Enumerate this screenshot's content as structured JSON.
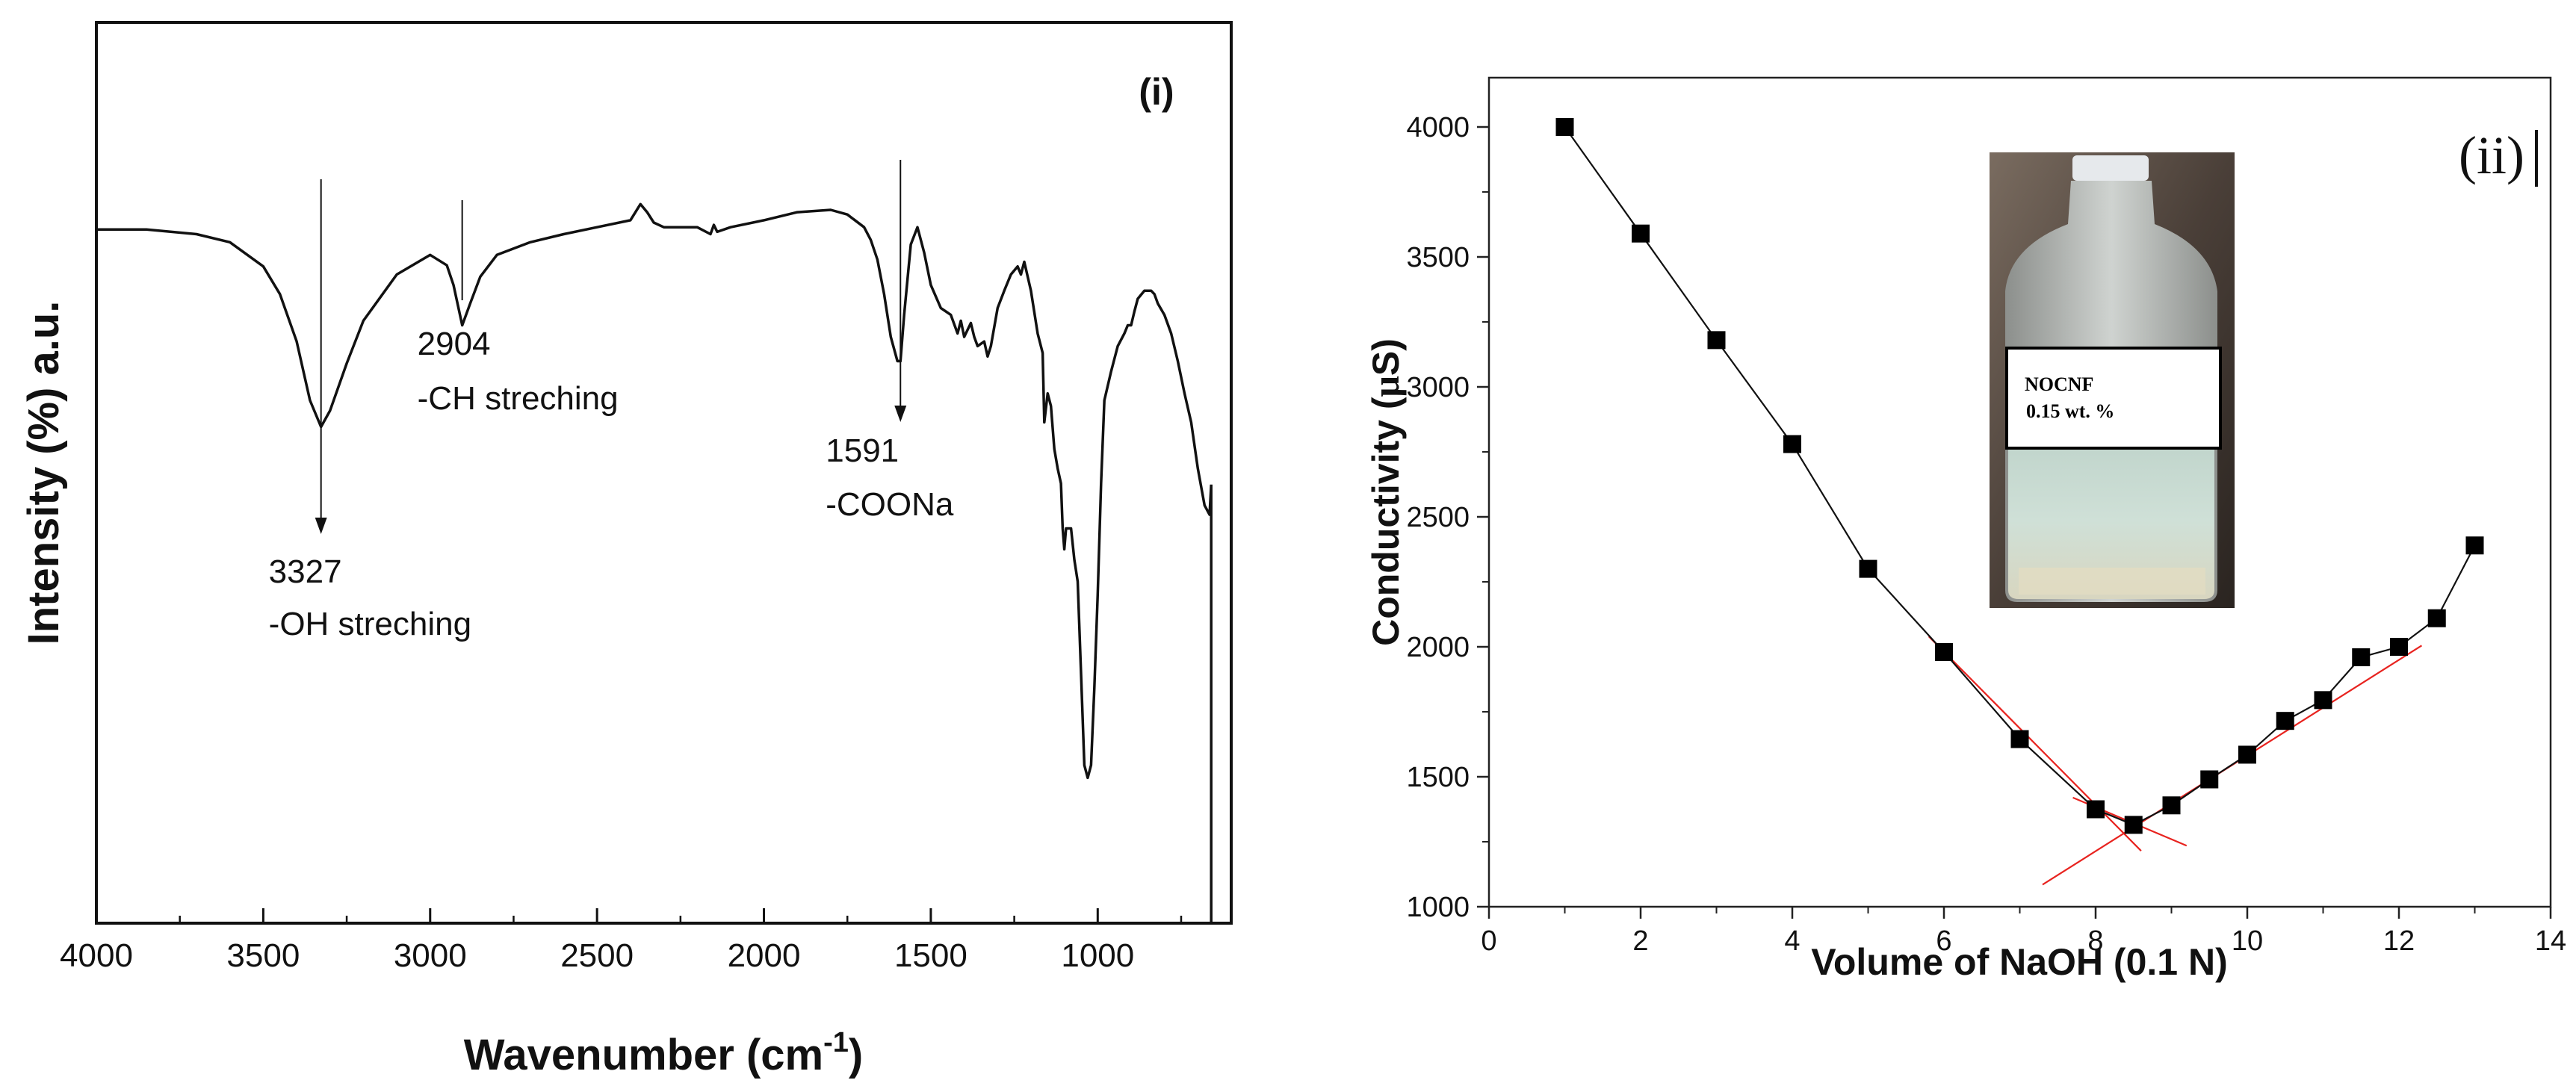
{
  "chart_data": [
    {
      "type": "line",
      "panel_label": "(i)",
      "title": "",
      "xlabel_main": "Wavenumber (cm",
      "xlabel_sup": "-1",
      "xlabel_close": ")",
      "ylabel": "Intensity (%) a.u.",
      "xlim": [
        4000,
        600
      ],
      "xticks": [
        4000,
        3500,
        3000,
        2500,
        2000,
        1500,
        1000
      ],
      "xtick_labels": [
        "4000",
        "3500",
        "3000",
        "2500",
        "2000",
        "1500",
        "1000"
      ],
      "grid": false,
      "series": [
        {
          "name": "FTIR spectrum",
          "x": [
            4000,
            3850,
            3700,
            3600,
            3500,
            3450,
            3400,
            3360,
            3327,
            3300,
            3250,
            3200,
            3100,
            3000,
            2950,
            2930,
            2904,
            2880,
            2850,
            2800,
            2700,
            2600,
            2500,
            2400,
            2370,
            2350,
            2330,
            2300,
            2200,
            2160,
            2150,
            2140,
            2100,
            2000,
            1900,
            1800,
            1750,
            1700,
            1680,
            1660,
            1640,
            1620,
            1600,
            1591,
            1580,
            1560,
            1540,
            1520,
            1500,
            1470,
            1440,
            1420,
            1410,
            1400,
            1380,
            1370,
            1360,
            1340,
            1330,
            1320,
            1300,
            1280,
            1260,
            1240,
            1230,
            1220,
            1200,
            1180,
            1165,
            1160,
            1150,
            1140,
            1130,
            1120,
            1110,
            1105,
            1100,
            1095,
            1080,
            1070,
            1060,
            1050,
            1040,
            1030,
            1020,
            1010,
            1000,
            990,
            980,
            960,
            940,
            920,
            910,
            900,
            890,
            880,
            860,
            840,
            830,
            820,
            800,
            780,
            760,
            740,
            720,
            700,
            680,
            665,
            660
          ],
          "y": [
            95.0,
            95.0,
            94.6,
            93.9,
            91.8,
            89.4,
            85.3,
            80.2,
            77.9,
            79.3,
            83.4,
            87.1,
            91.1,
            92.8,
            91.9,
            90.2,
            86.7,
            88.6,
            90.9,
            92.8,
            93.9,
            94.6,
            95.2,
            95.8,
            97.2,
            96.5,
            95.6,
            95.2,
            95.2,
            94.6,
            95.4,
            94.8,
            95.2,
            95.8,
            96.5,
            96.7,
            96.3,
            95.2,
            94.1,
            92.4,
            89.4,
            85.7,
            83.6,
            83.6,
            87.6,
            93.7,
            95.2,
            93.0,
            90.2,
            88.2,
            87.6,
            86.0,
            87.1,
            85.7,
            86.9,
            85.7,
            84.9,
            85.3,
            84.0,
            84.9,
            88.2,
            89.7,
            91.1,
            91.8,
            91.1,
            92.2,
            89.7,
            86.0,
            84.3,
            78.3,
            80.8,
            79.7,
            76.0,
            74.3,
            73.0,
            69.1,
            67.3,
            69.1,
            69.1,
            66.4,
            64.5,
            56.5,
            48.6,
            47.5,
            48.6,
            55.3,
            63.4,
            73.0,
            80.2,
            82.7,
            84.9,
            86.0,
            86.7,
            86.7,
            87.9,
            89.0,
            89.7,
            89.7,
            89.4,
            88.6,
            87.6,
            86.0,
            83.6,
            80.8,
            78.3,
            74.3,
            71.1,
            70.3,
            72.9
          ]
        }
      ],
      "annotations": [
        {
          "number": "3327",
          "text": "-OH streching",
          "x": 3327
        },
        {
          "number": "2904",
          "text": "-CH streching",
          "x": 2904
        },
        {
          "number": "1591",
          "text": "-COONa",
          "x": 1591
        }
      ]
    },
    {
      "type": "line",
      "panel_label": "(ii)",
      "title": "",
      "xlabel": "Volume of NaOH (0.1 N)",
      "ylabel_pre": "Conductivity (",
      "ylabel_mu": "μ",
      "ylabel_post": "S)",
      "xlim": [
        0,
        14
      ],
      "ylim": [
        1000,
        4000
      ],
      "xticks": [
        0,
        2,
        4,
        6,
        8,
        10,
        12,
        14
      ],
      "xtick_labels": [
        "0",
        "2",
        "4",
        "6",
        "8",
        "10",
        "12",
        "14"
      ],
      "yticks": [
        1000,
        1500,
        2000,
        2500,
        3000,
        3500,
        4000
      ],
      "ytick_labels": [
        "1000",
        "1500",
        "2000",
        "2500",
        "3000",
        "3500",
        "4000"
      ],
      "grid": false,
      "series": [
        {
          "name": "Conductivity",
          "marker": "square",
          "x": [
            1,
            2,
            3,
            4,
            5,
            6,
            7,
            8,
            8.5,
            9,
            9.5,
            10,
            10.5,
            11,
            11.5,
            12,
            12.5,
            13
          ],
          "y": [
            4000,
            3590,
            3180,
            2780,
            2300,
            1980,
            1645,
            1375,
            1315,
            1390,
            1490,
            1585,
            1715,
            1795,
            1960,
            2000,
            2110,
            2390
          ]
        }
      ],
      "fit_lines": [
        {
          "name": "descending fit",
          "color": "#e8231f",
          "x": [
            5.8,
            8.6
          ],
          "y": [
            2040,
            1215
          ]
        },
        {
          "name": "ascending fit",
          "color": "#e8231f",
          "x": [
            7.3,
            12.3
          ],
          "y": [
            1085,
            2005
          ]
        },
        {
          "name": "baseline fit",
          "color": "#e8231f",
          "x": [
            7.7,
            9.2
          ],
          "y": [
            1420,
            1235
          ]
        }
      ],
      "inset": {
        "label_line1": "NOCNF",
        "label_line2": "0.15 wt. %"
      }
    }
  ]
}
